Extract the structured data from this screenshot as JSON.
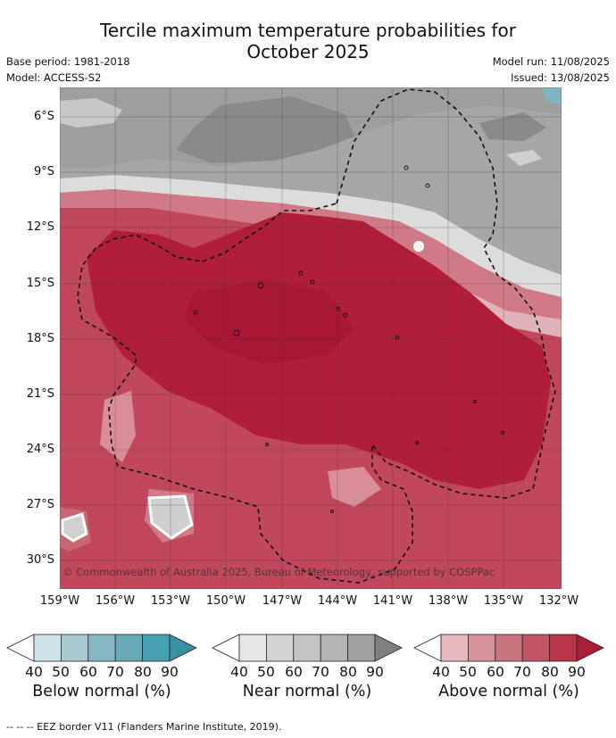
{
  "title_line1": "Tercile maximum temperature probabilities for",
  "title_line2": "October 2025",
  "base_period": "Base period: 1981-2018",
  "model": "Model: ACCESS-S2",
  "model_run": "Model run: 11/08/2025",
  "issued": "Issued: 13/08/2025",
  "copyright": "© Commonwealth of Australia 2025, Bureau of Meteorology, supported by COSPPac",
  "lat_labels": [
    "6°S",
    "9°S",
    "12°S",
    "15°S",
    "18°S",
    "21°S",
    "24°S",
    "27°S",
    "30°S"
  ],
  "lon_labels": [
    "159°W",
    "156°W",
    "153°W",
    "150°W",
    "147°W",
    "144°W",
    "141°W",
    "138°W",
    "135°W",
    "132°W"
  ],
  "legends": [
    {
      "caption": "Below normal (%)",
      "ticks": [
        "40",
        "50",
        "60",
        "70",
        "80",
        "90"
      ],
      "colors": [
        "#ffffff",
        "#cde3e8",
        "#a8cbd3",
        "#86b8c4",
        "#68a9b8",
        "#469fb0",
        "#3a8fa3"
      ]
    },
    {
      "caption": "Near normal (%)",
      "ticks": [
        "40",
        "50",
        "60",
        "70",
        "80",
        "90"
      ],
      "colors": [
        "#ffffff",
        "#e6e6e6",
        "#d4d4d4",
        "#c4c4c4",
        "#b4b4b4",
        "#a0a0a0",
        "#808080"
      ]
    },
    {
      "caption": "Above normal (%)",
      "ticks": [
        "40",
        "50",
        "60",
        "70",
        "80",
        "90"
      ],
      "colors": [
        "#ffffff",
        "#e6b9c1",
        "#d6949d",
        "#c97580",
        "#c05566",
        "#b8354a",
        "#ac1d3a"
      ]
    }
  ],
  "footnote": "--  --  -- EEZ border V11 (Flanders Marine Institute, 2019)."
}
